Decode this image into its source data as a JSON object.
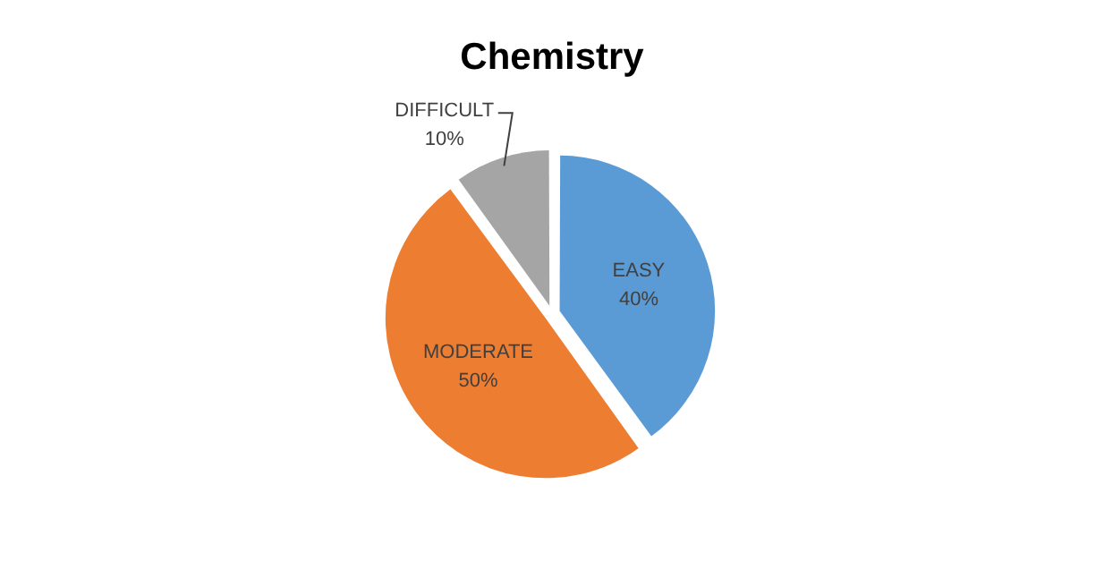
{
  "chart_data": {
    "type": "pie",
    "title": "Chemistry",
    "categories": [
      "EASY",
      "MODERATE",
      "DIFFICULT"
    ],
    "values": [
      40,
      50,
      10
    ],
    "value_labels": [
      "40%",
      "50%",
      "10%"
    ],
    "colors": [
      "#5b9bd5",
      "#ed7d31",
      "#a5a5a5"
    ],
    "legend": false
  }
}
